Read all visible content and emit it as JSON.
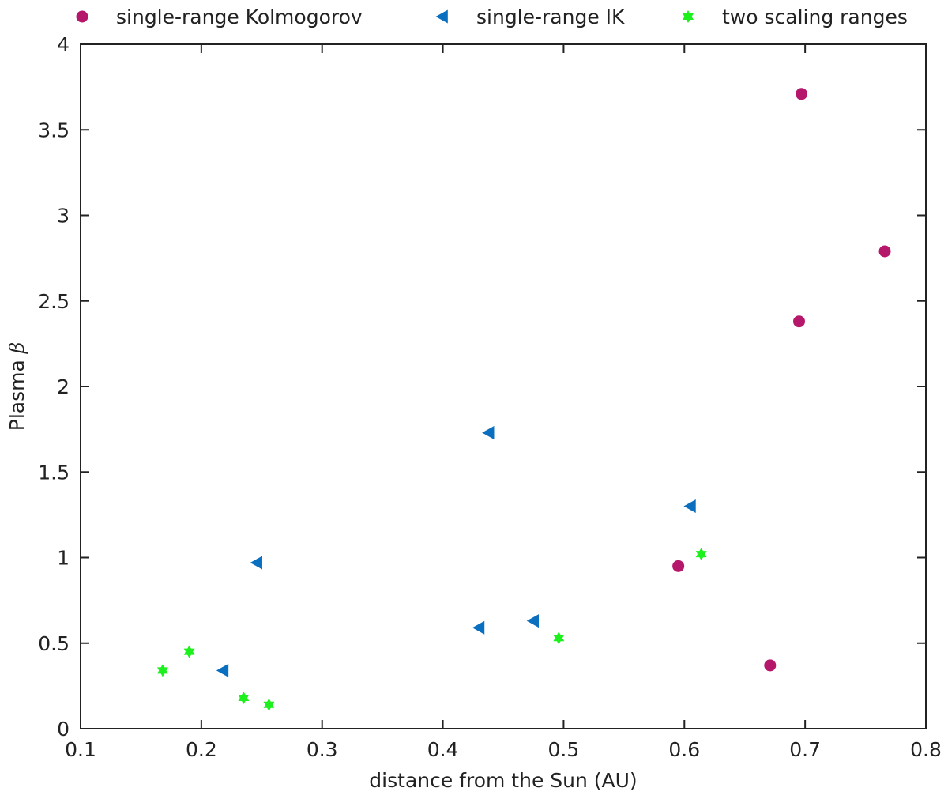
{
  "chart_data": {
    "type": "scatter",
    "title": "",
    "xlabel": "distance from the Sun (AU)",
    "ylabel_text": "Plasma",
    "ylabel_symbol": "β",
    "xlim": [
      0.1,
      0.8
    ],
    "ylim": [
      0,
      4
    ],
    "xticks": [
      0.1,
      0.2,
      0.3,
      0.4,
      0.5,
      0.6,
      0.7,
      0.8
    ],
    "xtick_labels": [
      "0.1",
      "0.2",
      "0.3",
      "0.4",
      "0.5",
      "0.6",
      "0.7",
      "0.8"
    ],
    "yticks": [
      0,
      0.5,
      1,
      1.5,
      2,
      2.5,
      3,
      3.5,
      4
    ],
    "ytick_labels": [
      "0",
      "0.5",
      "1",
      "1.5",
      "2",
      "2.5",
      "3",
      "3.5",
      "4"
    ],
    "grid": false,
    "legend_position": "top",
    "series": [
      {
        "name": "single-range Kolmogorov",
        "marker": "circle",
        "color": "#b5176b",
        "points": [
          {
            "x": 0.697,
            "y": 3.71
          },
          {
            "x": 0.766,
            "y": 2.79
          },
          {
            "x": 0.695,
            "y": 2.38
          },
          {
            "x": 0.595,
            "y": 0.95
          },
          {
            "x": 0.671,
            "y": 0.37
          }
        ]
      },
      {
        "name": "single-range IK",
        "marker": "triangle-left",
        "color": "#0a6fbf",
        "points": [
          {
            "x": 0.438,
            "y": 1.73
          },
          {
            "x": 0.605,
            "y": 1.3
          },
          {
            "x": 0.246,
            "y": 0.97
          },
          {
            "x": 0.475,
            "y": 0.63
          },
          {
            "x": 0.43,
            "y": 0.59
          },
          {
            "x": 0.218,
            "y": 0.34
          }
        ]
      },
      {
        "name": "two scaling ranges",
        "marker": "hexagram",
        "color": "#1ef01e",
        "points": [
          {
            "x": 0.614,
            "y": 1.02
          },
          {
            "x": 0.496,
            "y": 0.53
          },
          {
            "x": 0.19,
            "y": 0.45
          },
          {
            "x": 0.168,
            "y": 0.34
          },
          {
            "x": 0.235,
            "y": 0.18
          },
          {
            "x": 0.256,
            "y": 0.14
          }
        ]
      }
    ]
  }
}
